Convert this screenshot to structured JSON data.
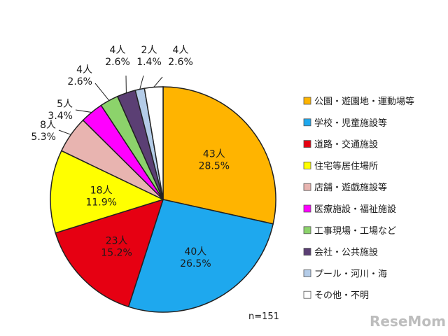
{
  "chart_data": {
    "type": "pie",
    "start_angle_deg": 0,
    "direction": "clockwise",
    "categories": [
      "公園・遊園地・運動場等",
      "学校・児童施設等",
      "道路・交通施設",
      "住宅等居住場所",
      "店舗・遊戯施設等",
      "医療施設・福祉施設",
      "工事現場・工場など",
      "会社・公共施設",
      "プール・河川・海",
      "その他・不明"
    ],
    "counts": [
      43,
      40,
      23,
      18,
      8,
      5,
      4,
      4,
      2,
      4
    ],
    "percents": [
      28.5,
      26.5,
      15.2,
      11.9,
      5.3,
      3.4,
      2.6,
      2.6,
      1.4,
      2.6
    ],
    "count_labels": [
      "43人",
      "40人",
      "23人",
      "18人",
      "8人",
      "5人",
      "4人",
      "4人",
      "2人",
      "4人"
    ],
    "percent_labels": [
      "28.5%",
      "26.5%",
      "15.2%",
      "11.9%",
      "5.3%",
      "3.4%",
      "2.6%",
      "2.6%",
      "1.4%",
      "2.6%"
    ],
    "colors": [
      "#FFB400",
      "#1EA8EE",
      "#E60012",
      "#FFFF00",
      "#E8B4B0",
      "#FF00FF",
      "#8CD36B",
      "#5B3F74",
      "#B4CCE8",
      "#FFFFFF"
    ],
    "legend_position": "right",
    "n_label": "n=151"
  },
  "watermark": "ReseMom"
}
